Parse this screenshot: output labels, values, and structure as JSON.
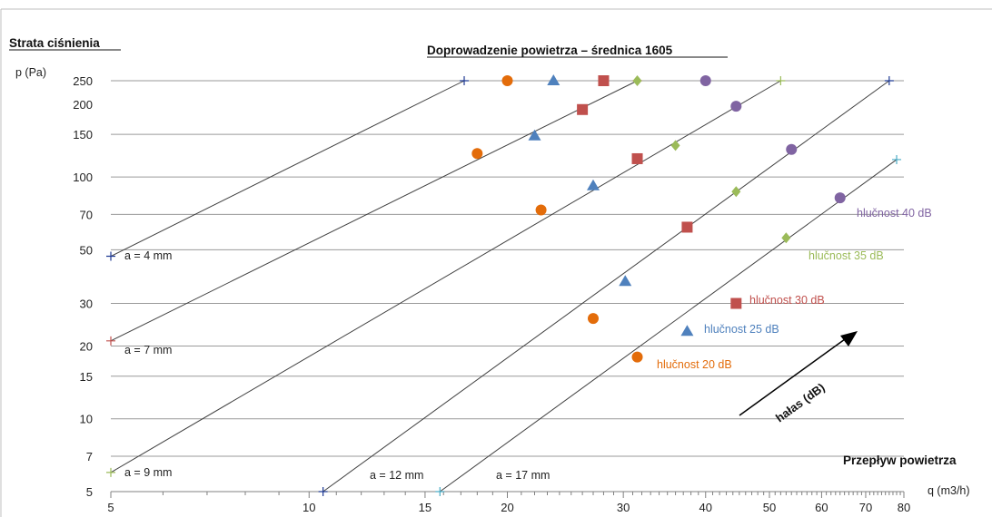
{
  "chart_data": {
    "type": "line",
    "title": "Doprowadzenie powietrza – średnica 1605",
    "y_title": "Strata ciśnienia",
    "y_unit": "p (Pa)",
    "x_title": "Przepływ powietrza",
    "x_unit": "q (m3/h)",
    "x_scale": "log",
    "y_scale": "log",
    "xlim": [
      5,
      80
    ],
    "ylim": [
      5,
      250
    ],
    "grid": "horizontal",
    "x_ticks": [
      5,
      10,
      15,
      20,
      30,
      40,
      50,
      60,
      70,
      80
    ],
    "y_ticks": [
      5,
      7,
      10,
      15,
      20,
      30,
      50,
      70,
      100,
      150,
      200,
      250
    ],
    "aperture_lines": [
      {
        "name": "a = 4 mm",
        "points": [
          [
            5,
            47
          ],
          [
            17.2,
            250
          ]
        ]
      },
      {
        "name": "a = 7 mm",
        "points": [
          [
            5,
            21
          ],
          [
            31.5,
            250
          ]
        ]
      },
      {
        "name": "a = 9 mm",
        "points": [
          [
            5,
            6
          ],
          [
            52,
            250
          ]
        ]
      },
      {
        "name": "a = 12 mm",
        "points": [
          [
            10.5,
            5
          ],
          [
            76,
            250
          ]
        ]
      },
      {
        "name": "a = 17 mm",
        "points": [
          [
            15.8,
            5
          ],
          [
            78,
            118
          ]
        ]
      }
    ],
    "noise_series": [
      {
        "name": "hlučnost 20 dB",
        "color": "#e36c0a",
        "marker": "circle",
        "points": [
          [
            20,
            250
          ],
          [
            18,
            125
          ],
          [
            22.5,
            73
          ],
          [
            27,
            26
          ],
          [
            31.5,
            18
          ]
        ]
      },
      {
        "name": "hlučnost 25 dB",
        "color": "#4f81bd",
        "marker": "triangle",
        "points": [
          [
            23.5,
            250
          ],
          [
            22,
            148
          ],
          [
            27,
            92
          ],
          [
            30.2,
            37
          ],
          [
            37.5,
            23
          ]
        ]
      },
      {
        "name": "hlučnost 30 dB",
        "color": "#c0504d",
        "marker": "square",
        "points": [
          [
            28,
            250
          ],
          [
            26,
            190
          ],
          [
            31.5,
            119
          ],
          [
            37.5,
            62
          ],
          [
            44.5,
            30
          ]
        ]
      },
      {
        "name": "hlučnost 35 dB",
        "color": "#9bbb59",
        "marker": "diamond",
        "points": [
          [
            31.5,
            250
          ],
          [
            36,
            135
          ],
          [
            44.5,
            87
          ],
          [
            53,
            56
          ]
        ]
      },
      {
        "name": "hlučnost 40 dB",
        "color": "#8064a2",
        "marker": "circle",
        "points": [
          [
            40,
            250
          ],
          [
            44.5,
            196
          ],
          [
            54,
            130
          ],
          [
            64,
            82
          ]
        ]
      }
    ],
    "noise_axis_label": "hałas (dB)"
  }
}
